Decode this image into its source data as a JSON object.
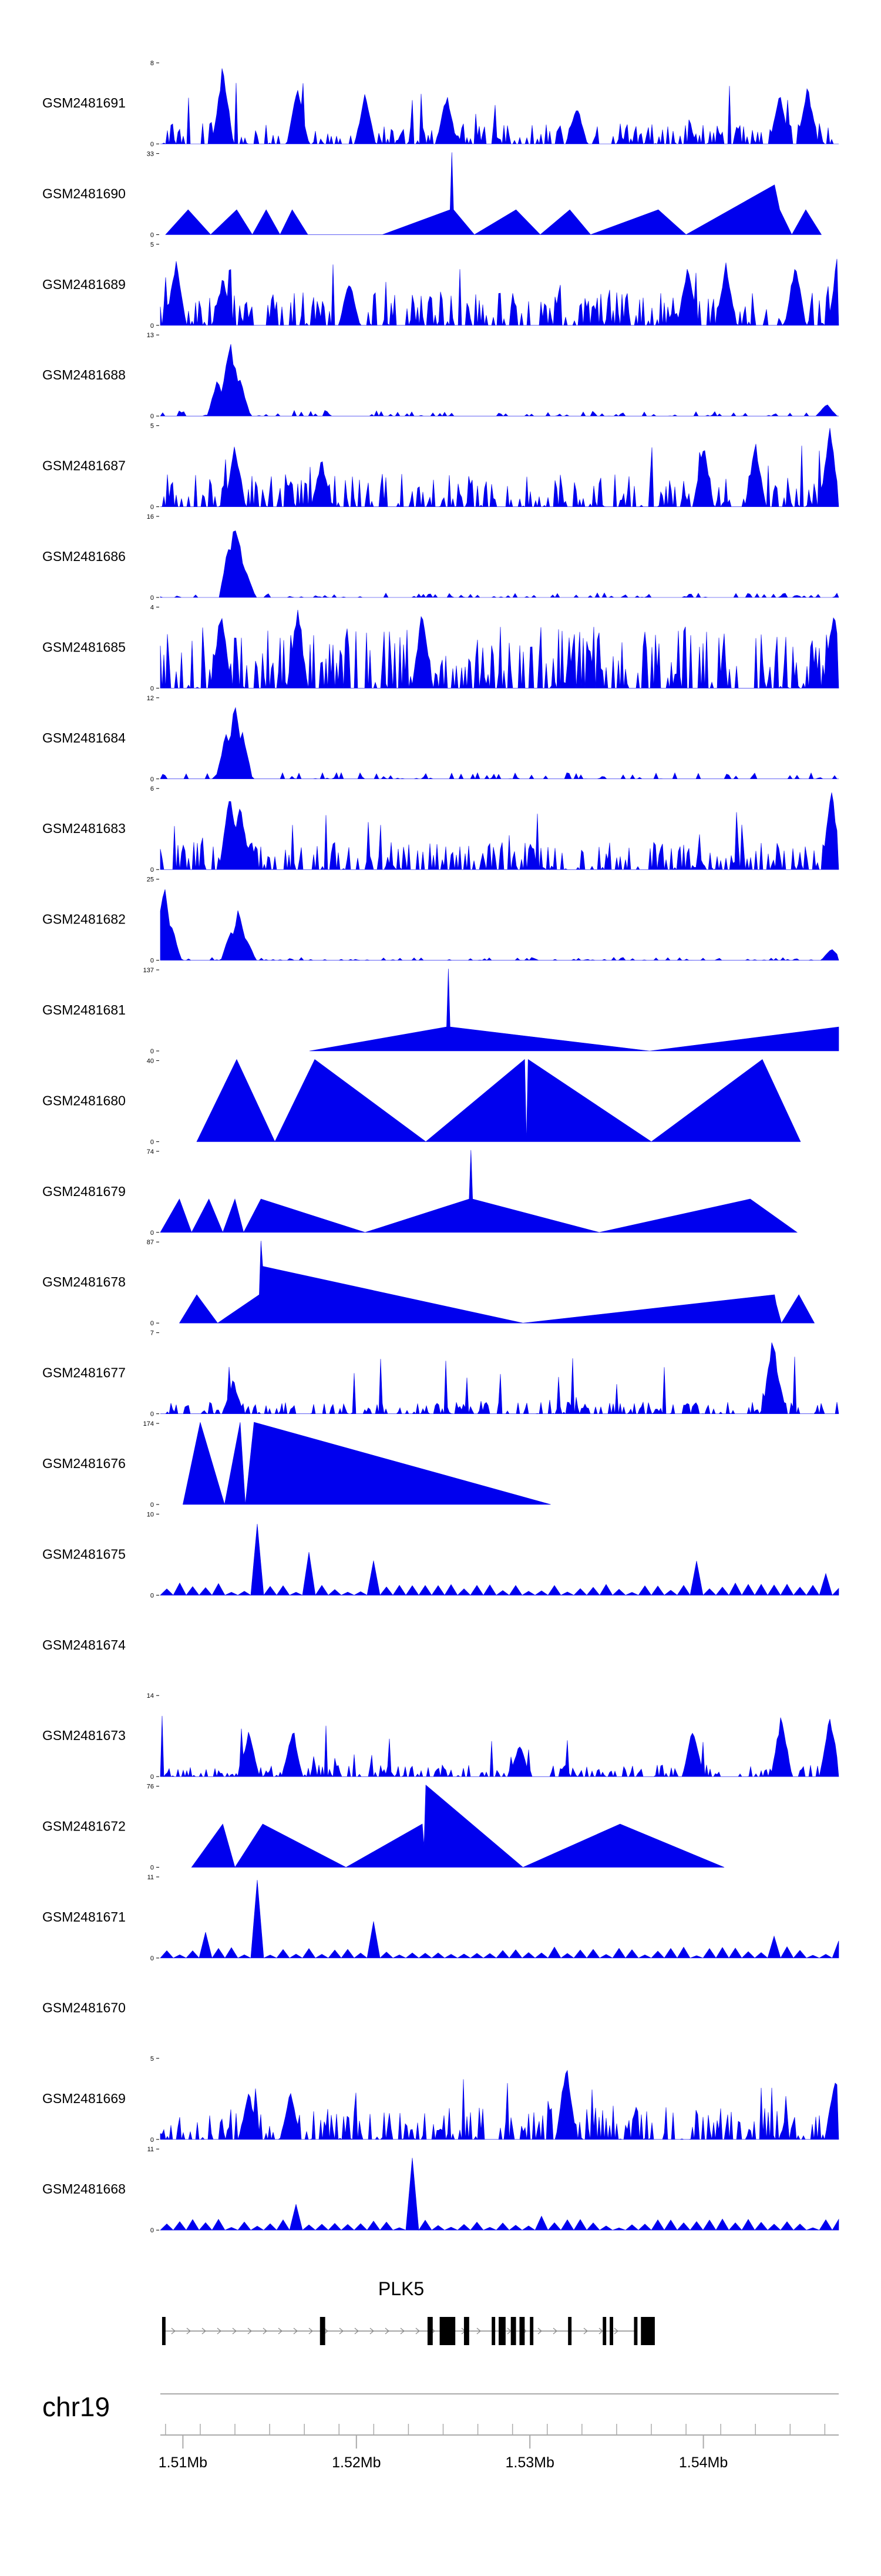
{
  "chart_data": {
    "type": "area",
    "title": "",
    "chromosome": "chr19",
    "x_range_mb": [
      1.5087,
      1.5478
    ],
    "x_ticks": [
      "1.51Mb",
      "1.52Mb",
      "1.53Mb",
      "1.54Mb"
    ],
    "x_tick_values_mb": [
      1.51,
      1.52,
      1.53,
      1.54
    ],
    "fill_color": "#0000ee",
    "gene": {
      "name": "PLK5",
      "start_mb": 1.5088,
      "end_mb": 1.5362,
      "strand": "+",
      "exons_mb": [
        [
          1.5088,
          1.509
        ],
        [
          1.5179,
          1.5182
        ],
        [
          1.5241,
          1.5244
        ],
        [
          1.5248,
          1.5257
        ],
        [
          1.5262,
          1.5265
        ],
        [
          1.5278,
          1.528
        ],
        [
          1.5282,
          1.5286
        ],
        [
          1.5289,
          1.5292
        ],
        [
          1.5294,
          1.5297
        ],
        [
          1.53,
          1.5302
        ],
        [
          1.5322,
          1.5324
        ],
        [
          1.5342,
          1.5344
        ],
        [
          1.5346,
          1.5348
        ],
        [
          1.536,
          1.5362
        ],
        [
          1.5364,
          1.5372
        ]
      ],
      "color": "#000000"
    },
    "tracks": [
      {
        "name": "GSM2481691",
        "ymax": 8,
        "peaks_mb": [
          [
            1.5123,
            8
          ],
          [
            1.5166,
            6
          ],
          [
            1.5205,
            5
          ],
          [
            1.5252,
            5
          ],
          [
            1.5327,
            4
          ],
          [
            1.5444,
            5
          ],
          [
            1.546,
            6
          ]
        ],
        "baseline": "dense",
        "noise": 2
      },
      {
        "name": "GSM2481690",
        "ymax": 33,
        "peaks_mb": [
          [
            1.509,
            0
          ],
          [
            1.5103,
            10
          ],
          [
            1.5116,
            0
          ],
          [
            1.5131,
            10
          ],
          [
            1.514,
            0
          ],
          [
            1.5148,
            10
          ],
          [
            1.5156,
            0
          ],
          [
            1.5163,
            10
          ],
          [
            1.5172,
            0
          ],
          [
            1.5215,
            0
          ],
          [
            1.5254,
            10
          ],
          [
            1.5255,
            33
          ],
          [
            1.5256,
            10
          ],
          [
            1.5268,
            0
          ],
          [
            1.5292,
            10
          ],
          [
            1.5306,
            0
          ],
          [
            1.5323,
            10
          ],
          [
            1.5335,
            0
          ],
          [
            1.5374,
            10
          ],
          [
            1.539,
            0
          ],
          [
            1.5441,
            20
          ],
          [
            1.5444,
            10
          ],
          [
            1.5451,
            0
          ],
          [
            1.5459,
            10
          ],
          [
            1.5468,
            0
          ]
        ],
        "baseline": "none",
        "noise": 0
      },
      {
        "name": "GSM2481689",
        "ymax": 5,
        "peaks_mb": [
          [
            1.5096,
            4
          ],
          [
            1.5123,
            3
          ],
          [
            1.5196,
            3
          ],
          [
            1.5391,
            4
          ],
          [
            1.5413,
            4
          ],
          [
            1.5453,
            4
          ],
          [
            1.5478,
            5
          ]
        ],
        "baseline": "dense",
        "noise": 2
      },
      {
        "name": "GSM2481688",
        "ymax": 13,
        "peaks_mb": [
          [
            1.512,
            6
          ],
          [
            1.5127,
            13
          ],
          [
            1.513,
            8
          ],
          [
            1.5133,
            6
          ],
          [
            1.5471,
            2
          ]
        ],
        "baseline": "sparse",
        "noise": 1
      },
      {
        "name": "GSM2481687",
        "ymax": 5,
        "peaks_mb": [
          [
            1.513,
            4
          ],
          [
            1.518,
            3
          ],
          [
            1.54,
            4
          ],
          [
            1.543,
            4
          ],
          [
            1.5473,
            5
          ]
        ],
        "baseline": "dense",
        "noise": 2
      },
      {
        "name": "GSM2481686",
        "ymax": 16,
        "peaks_mb": [
          [
            1.5127,
            12
          ],
          [
            1.513,
            16
          ],
          [
            1.5133,
            10
          ],
          [
            1.5136,
            6
          ]
        ],
        "baseline": "sparse",
        "noise": 1
      },
      {
        "name": "GSM2481685",
        "ymax": 4,
        "peaks_mb": [
          [
            1.5122,
            4
          ],
          [
            1.5166,
            4
          ],
          [
            1.5238,
            4
          ],
          [
            1.5475,
            4
          ]
        ],
        "baseline": "dense",
        "noise": 3
      },
      {
        "name": "GSM2481684",
        "ymax": 12,
        "peaks_mb": [
          [
            1.5125,
            7
          ],
          [
            1.513,
            12
          ],
          [
            1.5134,
            8
          ]
        ],
        "baseline": "sparse",
        "noise": 1
      },
      {
        "name": "GSM2481683",
        "ymax": 6,
        "peaks_mb": [
          [
            1.5127,
            6
          ],
          [
            1.5133,
            5
          ],
          [
            1.5474,
            6
          ]
        ],
        "baseline": "dense",
        "noise": 2
      },
      {
        "name": "GSM2481682",
        "ymax": 25,
        "peaks_mb": [
          [
            1.5089,
            25
          ],
          [
            1.5093,
            12
          ],
          [
            1.5128,
            10
          ],
          [
            1.5132,
            16
          ],
          [
            1.5136,
            8
          ],
          [
            1.5474,
            4
          ]
        ],
        "baseline": "sparse",
        "noise": 1
      },
      {
        "name": "GSM2481681",
        "ymax": 137,
        "peaks_mb": [
          [
            1.5173,
            0
          ],
          [
            1.5252,
            40
          ],
          [
            1.5253,
            137
          ],
          [
            1.5254,
            40
          ],
          [
            1.5369,
            0
          ],
          [
            1.5478,
            40
          ],
          [
            1.5478,
            0
          ]
        ],
        "baseline": "none",
        "noise": 0
      },
      {
        "name": "GSM2481680",
        "ymax": 40,
        "peaks_mb": [
          [
            1.5108,
            0
          ],
          [
            1.5131,
            40
          ],
          [
            1.5153,
            0
          ],
          [
            1.5176,
            40
          ],
          [
            1.524,
            0
          ],
          [
            1.5297,
            40
          ],
          [
            1.5298,
            0
          ],
          [
            1.5299,
            40
          ],
          [
            1.537,
            0
          ],
          [
            1.5434,
            40
          ],
          [
            1.5456,
            0
          ]
        ],
        "baseline": "none",
        "noise": 0
      },
      {
        "name": "GSM2481679",
        "ymax": 74,
        "peaks_mb": [
          [
            1.5087,
            0
          ],
          [
            1.5098,
            30
          ],
          [
            1.5105,
            0
          ],
          [
            1.5115,
            30
          ],
          [
            1.5123,
            0
          ],
          [
            1.513,
            30
          ],
          [
            1.5135,
            0
          ],
          [
            1.5145,
            30
          ],
          [
            1.5205,
            0
          ],
          [
            1.5265,
            30
          ],
          [
            1.5266,
            74
          ],
          [
            1.5267,
            30
          ],
          [
            1.534,
            0
          ],
          [
            1.5427,
            30
          ],
          [
            1.5454,
            0
          ]
        ],
        "baseline": "none",
        "noise": 0
      },
      {
        "name": "GSM2481678",
        "ymax": 87,
        "peaks_mb": [
          [
            1.5098,
            0
          ],
          [
            1.5108,
            30
          ],
          [
            1.512,
            0
          ],
          [
            1.5144,
            30
          ],
          [
            1.5145,
            87
          ],
          [
            1.5146,
            60
          ],
          [
            1.5296,
            0
          ],
          [
            1.5441,
            30
          ],
          [
            1.5442,
            20
          ],
          [
            1.5445,
            0
          ],
          [
            1.5455,
            30
          ],
          [
            1.5464,
            0
          ]
        ],
        "baseline": "none",
        "noise": 0
      },
      {
        "name": "GSM2481677",
        "ymax": 7,
        "peaks_mb": [
          [
            1.5129,
            3
          ],
          [
            1.544,
            7
          ],
          [
            1.5442,
            4
          ]
        ],
        "baseline": "dense",
        "noise": 1
      },
      {
        "name": "GSM2481676",
        "ymax": 174,
        "peaks_mb": [
          [
            1.51,
            0
          ],
          [
            1.511,
            174
          ],
          [
            1.5124,
            0
          ],
          [
            1.5133,
            174
          ],
          [
            1.5136,
            0
          ],
          [
            1.5141,
            174
          ],
          [
            1.5312,
            0
          ]
        ],
        "baseline": "none",
        "noise": 0
      },
      {
        "name": "GSM2481675",
        "ymax": 10,
        "peaks_mb": [
          [
            1.5139,
            10
          ],
          [
            1.517,
            7
          ],
          [
            1.5208,
            7
          ],
          [
            1.5392,
            5
          ],
          [
            1.5464,
            5
          ]
        ],
        "baseline": "tri",
        "noise": 2
      },
      {
        "name": "GSM2481674",
        "ymax": 0,
        "peaks_mb": [],
        "baseline": "empty",
        "noise": 0
      },
      {
        "name": "GSM2481673",
        "ymax": 14,
        "peaks_mb": [
          [
            1.5138,
            8
          ],
          [
            1.5163,
            8
          ],
          [
            1.5294,
            6
          ],
          [
            1.5394,
            9
          ],
          [
            1.5445,
            11
          ],
          [
            1.5473,
            11
          ]
        ],
        "baseline": "dense",
        "noise": 2
      },
      {
        "name": "GSM2481672",
        "ymax": 76,
        "peaks_mb": [
          [
            1.5105,
            0
          ],
          [
            1.5123,
            40
          ],
          [
            1.513,
            0
          ],
          [
            1.5146,
            40
          ],
          [
            1.5194,
            0
          ],
          [
            1.5238,
            40
          ],
          [
            1.5239,
            20
          ],
          [
            1.524,
            76
          ],
          [
            1.5296,
            0
          ],
          [
            1.5352,
            40
          ],
          [
            1.5412,
            0
          ]
        ],
        "baseline": "none",
        "noise": 0
      },
      {
        "name": "GSM2481671",
        "ymax": 11,
        "peaks_mb": [
          [
            1.5112,
            7
          ],
          [
            1.5139,
            11
          ],
          [
            1.5205,
            7
          ],
          [
            1.544,
            6
          ],
          [
            1.5478,
            6
          ]
        ],
        "baseline": "tri",
        "noise": 2
      },
      {
        "name": "GSM2481670",
        "ymax": 0,
        "peaks_mb": [],
        "baseline": "empty",
        "noise": 0
      },
      {
        "name": "GSM2481669",
        "ymax": 5,
        "peaks_mb": [
          [
            1.5138,
            3
          ],
          [
            1.5162,
            3
          ],
          [
            1.5321,
            5
          ],
          [
            1.5476,
            4
          ]
        ],
        "baseline": "dense",
        "noise": 2
      },
      {
        "name": "GSM2481668",
        "ymax": 11,
        "peaks_mb": [
          [
            1.5229,
            11
          ],
          [
            1.5162,
            4
          ],
          [
            1.5306,
            4
          ]
        ],
        "baseline": "tri",
        "noise": 2
      }
    ]
  }
}
